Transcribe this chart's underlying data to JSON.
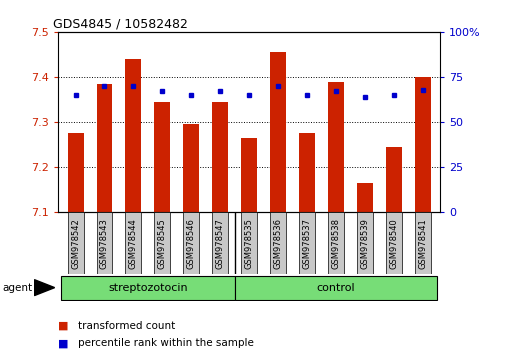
{
  "title": "GDS4845 / 10582482",
  "samples": [
    "GSM978542",
    "GSM978543",
    "GSM978544",
    "GSM978545",
    "GSM978546",
    "GSM978547",
    "GSM978535",
    "GSM978536",
    "GSM978537",
    "GSM978538",
    "GSM978539",
    "GSM978540",
    "GSM978541"
  ],
  "transformed_count": [
    7.275,
    7.385,
    7.44,
    7.345,
    7.295,
    7.345,
    7.265,
    7.455,
    7.275,
    7.39,
    7.165,
    7.245,
    7.4
  ],
  "percentile_rank": [
    65,
    70,
    70,
    67,
    65,
    67,
    65,
    70,
    65,
    67,
    64,
    65,
    68
  ],
  "groups": [
    {
      "label": "streptozotocin",
      "start": 0,
      "end": 6,
      "color": "#77DD77"
    },
    {
      "label": "control",
      "start": 6,
      "end": 13,
      "color": "#77DD77"
    }
  ],
  "ylim_left": [
    7.1,
    7.5
  ],
  "ylim_right": [
    0,
    100
  ],
  "bar_color": "#CC2200",
  "percentile_color": "#0000CC",
  "bar_width": 0.55,
  "plot_bg_color": "#ffffff",
  "left_tick_color": "#CC2200",
  "right_tick_color": "#0000CC",
  "agent_label": "agent",
  "legend_bar_label": "transformed count",
  "legend_pct_label": "percentile rank within the sample",
  "y_ticks_left": [
    7.1,
    7.2,
    7.3,
    7.4,
    7.5
  ],
  "y_ticks_right": [
    0,
    25,
    50,
    75,
    100
  ],
  "sample_bg_color": "#c8c8c8",
  "n_strep": 6,
  "n_control": 7
}
